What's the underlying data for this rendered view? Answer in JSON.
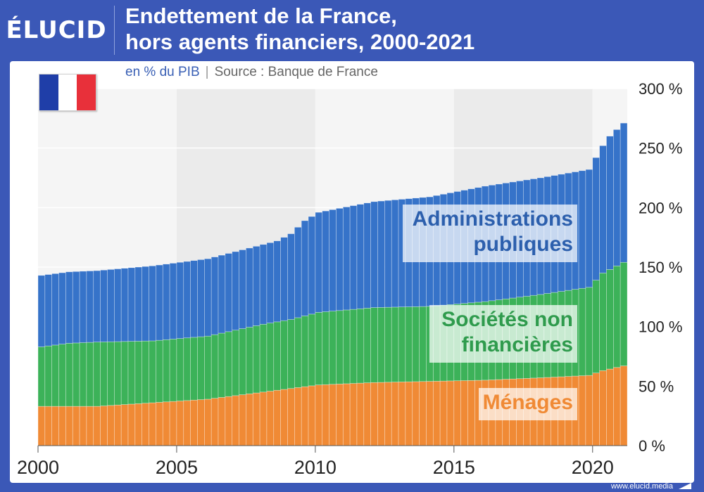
{
  "brand": {
    "logo": "ÉLUCID"
  },
  "header": {
    "title_line1": "Endettement de la France,",
    "title_line2": "hors agents financiers, 2000-2021",
    "unit": "en % du PIB",
    "separator": "|",
    "source": "Source : Banque de France"
  },
  "flag": {
    "colors": [
      "#1f3ea8",
      "#ffffff",
      "#e8303a"
    ]
  },
  "footer": {
    "url": "www.elucid.media"
  },
  "chart_data": {
    "type": "bar",
    "stacked": true,
    "x_start": 2000,
    "x_step": 0.25,
    "x_ticks": [
      2000,
      2005,
      2010,
      2015,
      2020
    ],
    "x_tick_labels": [
      "2000",
      "2005",
      "2010",
      "2015",
      "2020"
    ],
    "ylim": [
      0,
      300
    ],
    "y_ticks": [
      0,
      50,
      100,
      150,
      200,
      250,
      300
    ],
    "y_tick_labels": [
      "0 %",
      "50 %",
      "100 %",
      "150 %",
      "200 %",
      "250 %",
      "300 %"
    ],
    "grid": true,
    "series": [
      {
        "name": "Ménages",
        "color": "#f08a35",
        "label_lines": [
          "Ménages"
        ],
        "anchor": [
          2000,
          2002,
          2004,
          2006,
          2008,
          2009,
          2010,
          2012,
          2014,
          2016,
          2018,
          2019.75,
          2020.25,
          2021
        ],
        "values": [
          33,
          33,
          36,
          39,
          45,
          48,
          51,
          53,
          54,
          55,
          57,
          59,
          63,
          67
        ]
      },
      {
        "name": "Sociétés non financières",
        "color": "#3cb259",
        "label_lines": [
          "Sociétés non",
          "financières"
        ],
        "anchor": [
          2000,
          2001,
          2002,
          2004,
          2006,
          2008,
          2009,
          2010,
          2012,
          2014,
          2016,
          2018,
          2019.75,
          2020.25,
          2021
        ],
        "values": [
          50,
          53,
          54,
          52,
          53,
          57,
          58,
          61,
          63,
          63,
          66,
          70,
          74,
          82,
          87
        ]
      },
      {
        "name": "Administrations publiques",
        "color": "#3673c9",
        "label_lines": [
          "Administrations",
          "publiques"
        ],
        "anchor": [
          2000,
          2002,
          2004,
          2006,
          2008,
          2008.5,
          2009,
          2009.5,
          2010,
          2012,
          2014,
          2016,
          2018,
          2019.75,
          2020.25,
          2020.5,
          2021
        ],
        "values": [
          60,
          60,
          63,
          65,
          67,
          68,
          72,
          80,
          84,
          89,
          92,
          97,
          98,
          99,
          107,
          112,
          117
        ]
      }
    ]
  }
}
